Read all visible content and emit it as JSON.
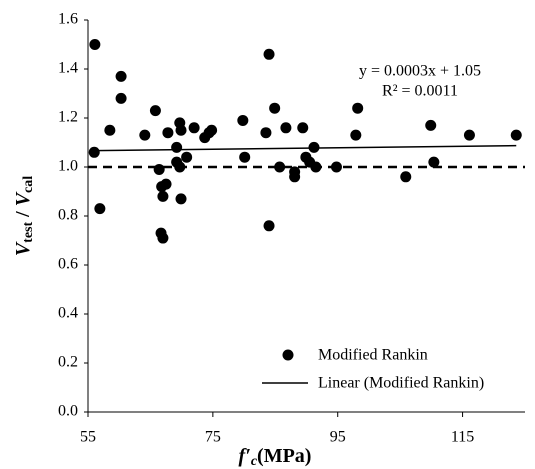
{
  "chart_data": {
    "type": "scatter",
    "xlabel": [
      "f′",
      "c",
      "(MPa)"
    ],
    "ylabel": [
      "V",
      "test",
      " / ",
      "V",
      "cal"
    ],
    "series": [
      {
        "name": "Modified Rankin",
        "color": "#000000",
        "x": [
          56.1,
          56.0,
          56.9,
          58.5,
          60.3,
          60.3,
          64.1,
          65.8,
          66.4,
          66.8,
          67.5,
          67.0,
          66.7,
          67.0,
          67.8,
          69.2,
          69.2,
          69.7,
          69.9,
          69.7,
          69.9,
          70.8,
          72.0,
          73.7,
          74.4,
          74.8,
          79.8,
          80.1,
          83.5,
          84.0,
          84.0,
          84.9,
          85.7,
          86.7,
          88.1,
          88.1,
          89.4,
          89.9,
          90.5,
          91.2,
          91.5,
          94.8,
          97.9,
          98.2,
          105.9,
          109.9,
          110.4,
          116.1,
          123.6
        ],
        "values": [
          1.5,
          1.06,
          0.83,
          1.15,
          1.37,
          1.28,
          1.13,
          1.23,
          0.99,
          0.92,
          0.93,
          0.88,
          0.73,
          0.71,
          1.14,
          1.08,
          1.02,
          1.18,
          1.15,
          1.0,
          0.87,
          1.04,
          1.16,
          1.12,
          1.14,
          1.15,
          1.19,
          1.04,
          1.14,
          1.46,
          0.76,
          1.24,
          1.0,
          1.16,
          0.98,
          0.96,
          1.16,
          1.04,
          1.02,
          1.08,
          1.0,
          1.0,
          1.13,
          1.24,
          0.96,
          1.17,
          1.02,
          1.13,
          1.13
        ]
      }
    ],
    "trendline": {
      "name": "Linear (Modified Rankin)",
      "equation": "y = 0.0003x + 1.05",
      "r2": "R² = 0.0011",
      "slope": 0.0003,
      "intercept": 1.05
    },
    "reference_line": 1,
    "xlim": [
      55,
      125
    ],
    "ylim": [
      0,
      1.6
    ],
    "xticks": [
      55,
      75,
      95,
      115
    ],
    "yticks": [
      {
        "value": 0,
        "label": "0.0"
      },
      {
        "value": 0.2,
        "label": "0.2"
      },
      {
        "value": 0.4,
        "label": "0.4"
      },
      {
        "value": 0.6,
        "label": "0.6"
      },
      {
        "value": 0.8,
        "label": "0.8"
      },
      {
        "value": 1,
        "label": "1.0"
      },
      {
        "value": 1.2,
        "label": "1.2"
      },
      {
        "value": 1.4,
        "label": "1.4"
      },
      {
        "value": 1.6,
        "label": "1.6"
      }
    ],
    "legend": "lower right"
  }
}
